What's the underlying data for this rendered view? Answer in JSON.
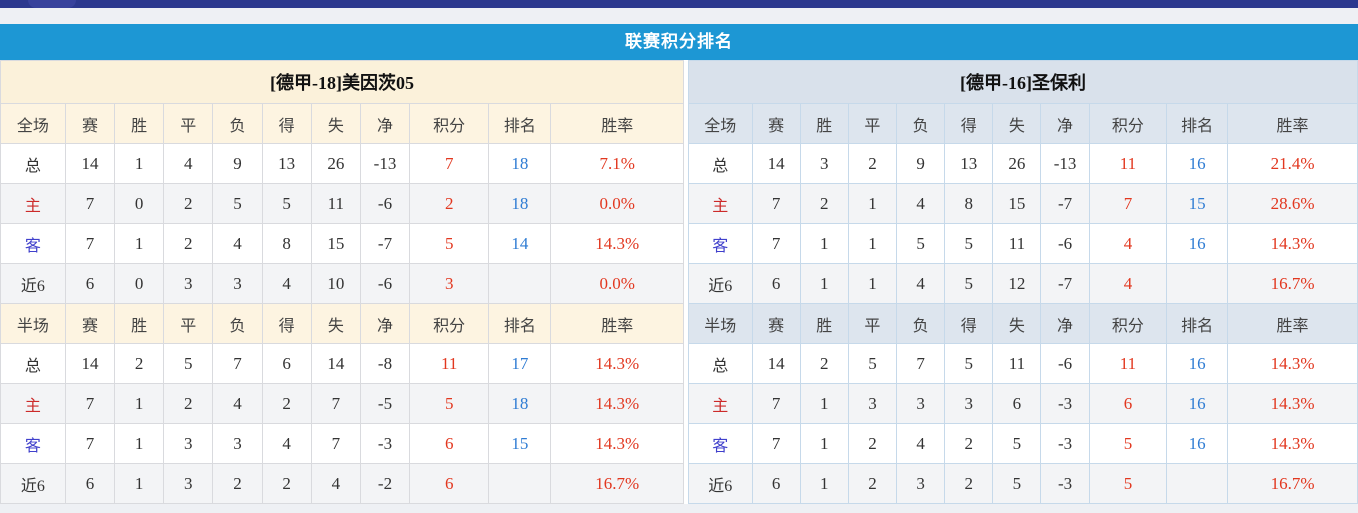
{
  "title": "联赛积分排名",
  "columns": {
    "full_label": "全场",
    "half_label": "半场",
    "stats": [
      "赛",
      "胜",
      "平",
      "负",
      "得",
      "失",
      "净"
    ],
    "points": "积分",
    "rank": "排名",
    "rate": "胜率"
  },
  "teams": [
    {
      "name": "[德甲-18]美因茨05",
      "full": [
        {
          "label": "总",
          "values": [
            14,
            1,
            4,
            9,
            13,
            26,
            -13
          ],
          "points": "7",
          "rank": "18",
          "rate": "7.1%"
        },
        {
          "label": "主",
          "values": [
            7,
            0,
            2,
            5,
            5,
            11,
            -6
          ],
          "points": "2",
          "rank": "18",
          "rate": "0.0%"
        },
        {
          "label": "客",
          "values": [
            7,
            1,
            2,
            4,
            8,
            15,
            -7
          ],
          "points": "5",
          "rank": "14",
          "rate": "14.3%"
        },
        {
          "label": "近6",
          "values": [
            6,
            0,
            3,
            3,
            4,
            10,
            -6
          ],
          "points": "3",
          "rank": "",
          "rate": "0.0%"
        }
      ],
      "half": [
        {
          "label": "总",
          "values": [
            14,
            2,
            5,
            7,
            6,
            14,
            -8
          ],
          "points": "11",
          "rank": "17",
          "rate": "14.3%"
        },
        {
          "label": "主",
          "values": [
            7,
            1,
            2,
            4,
            2,
            7,
            -5
          ],
          "points": "5",
          "rank": "18",
          "rate": "14.3%"
        },
        {
          "label": "客",
          "values": [
            7,
            1,
            3,
            3,
            4,
            7,
            -3
          ],
          "points": "6",
          "rank": "15",
          "rate": "14.3%"
        },
        {
          "label": "近6",
          "values": [
            6,
            1,
            3,
            2,
            2,
            4,
            -2
          ],
          "points": "6",
          "rank": "",
          "rate": "16.7%"
        }
      ]
    },
    {
      "name": "[德甲-16]圣保利",
      "full": [
        {
          "label": "总",
          "values": [
            14,
            3,
            2,
            9,
            13,
            26,
            -13
          ],
          "points": "11",
          "rank": "16",
          "rate": "21.4%"
        },
        {
          "label": "主",
          "values": [
            7,
            2,
            1,
            4,
            8,
            15,
            -7
          ],
          "points": "7",
          "rank": "15",
          "rate": "28.6%"
        },
        {
          "label": "客",
          "values": [
            7,
            1,
            1,
            5,
            5,
            11,
            -6
          ],
          "points": "4",
          "rank": "16",
          "rate": "14.3%"
        },
        {
          "label": "近6",
          "values": [
            6,
            1,
            1,
            4,
            5,
            12,
            -7
          ],
          "points": "4",
          "rank": "",
          "rate": "16.7%"
        }
      ],
      "half": [
        {
          "label": "总",
          "values": [
            14,
            2,
            5,
            7,
            5,
            11,
            -6
          ],
          "points": "11",
          "rank": "16",
          "rate": "14.3%"
        },
        {
          "label": "主",
          "values": [
            7,
            1,
            3,
            3,
            3,
            6,
            -3
          ],
          "points": "6",
          "rank": "16",
          "rate": "14.3%"
        },
        {
          "label": "客",
          "values": [
            7,
            1,
            2,
            4,
            2,
            5,
            -3
          ],
          "points": "5",
          "rank": "16",
          "rate": "14.3%"
        },
        {
          "label": "近6",
          "values": [
            6,
            1,
            2,
            3,
            2,
            5,
            -3
          ],
          "points": "5",
          "rank": "",
          "rate": "16.7%"
        }
      ]
    }
  ],
  "colors": {
    "top_bar": "#2c388e",
    "title_bar": "#1d97d4",
    "left_header_bg": "#fbf1da",
    "right_header_bg": "#d9e1eb",
    "points_and_rate_text": "#e2371f",
    "rank_text": "#2f7cd3",
    "home_label": "#cc2a2a",
    "away_label": "#4040cc"
  }
}
